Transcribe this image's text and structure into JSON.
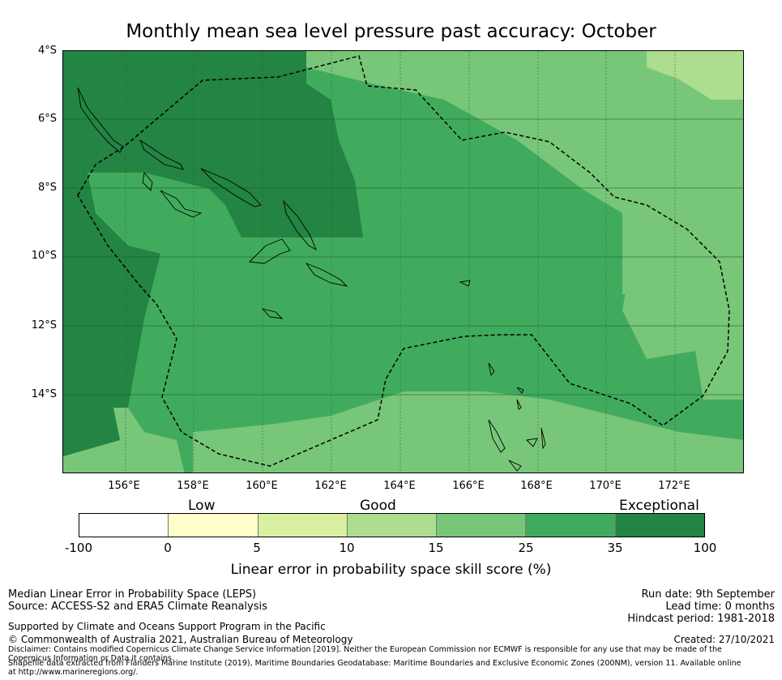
{
  "title": "Monthly mean sea level pressure past accuracy: October",
  "map": {
    "lat_labels": [
      "4°S",
      "6°S",
      "8°S",
      "10°S",
      "12°S",
      "14°S"
    ],
    "lon_labels": [
      "156°E",
      "158°E",
      "160°E",
      "162°E",
      "164°E",
      "166°E",
      "168°E",
      "170°E",
      "172°E"
    ],
    "colors": {
      "exceptional": "#238443",
      "good_high": "#41ab5d",
      "good_mid": "#78c679",
      "good_low": "#addd8e",
      "low_high": "#d9f0a3",
      "low": "#ffffcc",
      "none": "#ffffff"
    }
  },
  "colorbar": {
    "categories": [
      "Low",
      "Good",
      "Exceptional"
    ],
    "ticks": [
      "-100",
      "0",
      "5",
      "10",
      "15",
      "25",
      "35",
      "100"
    ],
    "colors": [
      "#ffffff",
      "#ffffcc",
      "#d9f0a3",
      "#addd8e",
      "#78c679",
      "#41ab5d",
      "#238443"
    ],
    "label": "Linear error in probability space skill score (%)"
  },
  "footer": {
    "method": "Median Linear Error in Probability Space (LEPS)",
    "source": "Source: ACCESS-S2 and ERA5 Climate Reanalysis",
    "support": "Supported by Climate and Oceans Support Program in the Pacific",
    "copyright": "© Commonwealth of Australia 2021, Australian Bureau of Meteorology",
    "disclaimer": "Disclaimer: Contains modified Copernicus Climate Change Service Information [2019]. Neither the European Commission nor ECMWF is responsible for any use that may be made of the Copernicus Information or Data it contains.",
    "shapefile": "Shapefile data extracted from Flanders Marine Institute (2019), Maritime Boundaries Geodatabase: Maritime Boundaries and Exclusive Economic Zones (200NM), version 11. Available online at http://www.marineregions.org/.",
    "run_date": "Run date: 9th September",
    "lead_time": "Lead time: 0 months",
    "hindcast": "Hindcast period: 1981-2018",
    "created": "Created: 27/10/2021"
  }
}
